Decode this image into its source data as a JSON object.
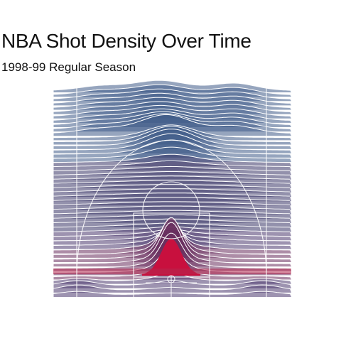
{
  "chart_data": {
    "type": "area",
    "title": "NBA Shot Density Over Time",
    "subtitle": "1998-99 Regular Season",
    "xlabel": "",
    "ylabel": "",
    "grid": false,
    "legend": "none",
    "background": "basketball half-court outline",
    "colors": {
      "low": "#3e5a87",
      "mid": "#2c2350",
      "high": "#c8103e",
      "line": "#ffffff"
    }
  }
}
